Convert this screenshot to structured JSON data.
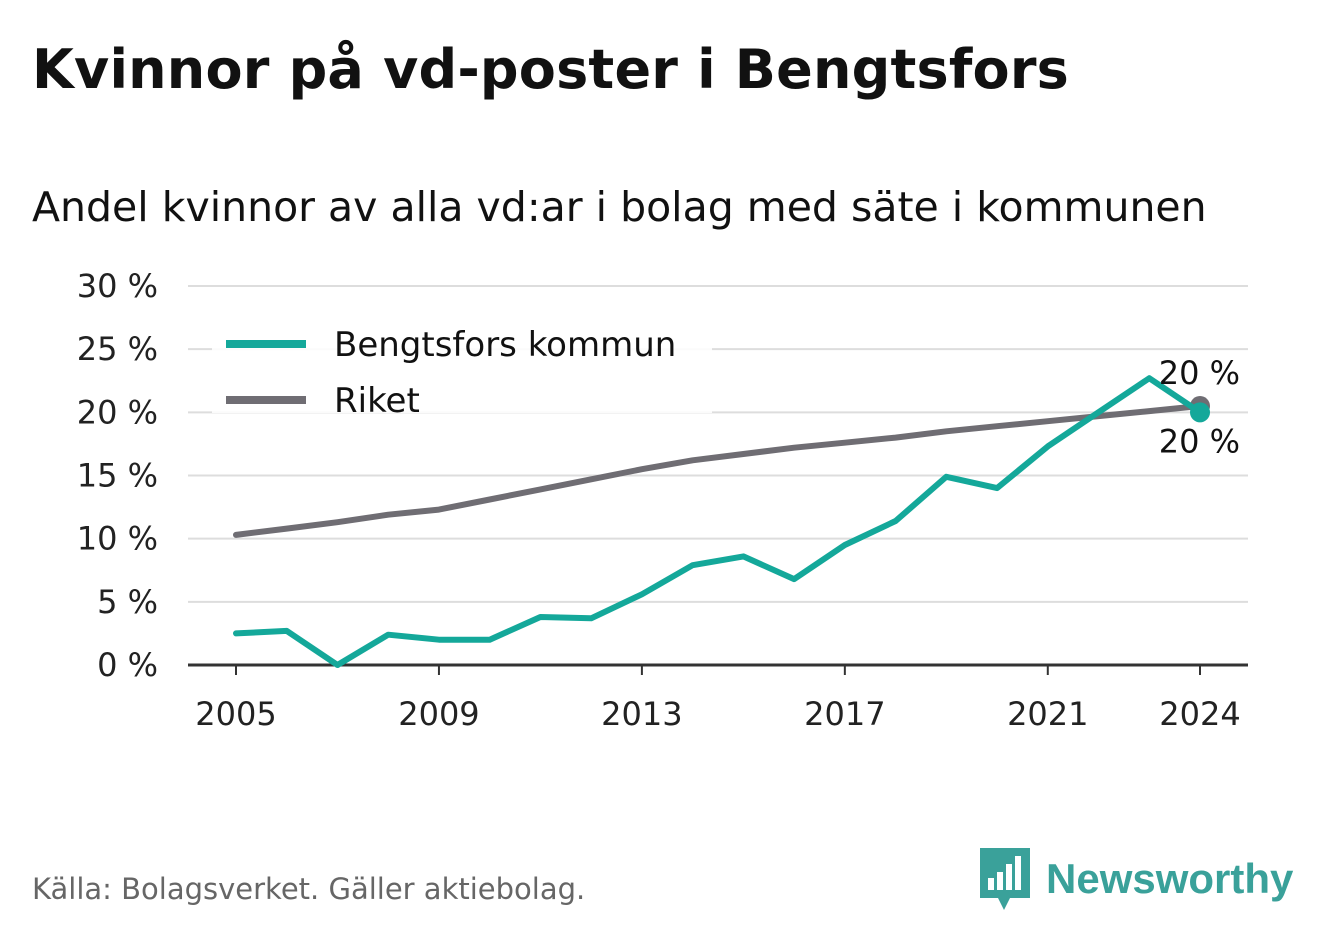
{
  "header": {
    "title": "Kvinnor på vd-poster i Bengtsfors",
    "subtitle": "Andel kvinnor av alla vd:ar i bolag med säte i kommunen"
  },
  "footer": {
    "source": "Källa: Bolagsverket. Gäller aktiebolag.",
    "brand": "Newsworthy",
    "brand_icon": "bar-chart-speech-bubble-icon"
  },
  "colors": {
    "municipality": "#14a89a",
    "national": "#6f6d73",
    "grid": "#dddddd",
    "axis": "#333333",
    "brand": "#3aa19a"
  },
  "chart_data": {
    "type": "line",
    "x": [
      2005,
      2006,
      2007,
      2008,
      2009,
      2010,
      2011,
      2012,
      2013,
      2014,
      2015,
      2016,
      2017,
      2018,
      2019,
      2020,
      2021,
      2022,
      2023,
      2024
    ],
    "series": [
      {
        "name": "Bengtsfors kommun",
        "color": "#14a89a",
        "values": [
          2.5,
          2.7,
          0.0,
          2.4,
          2.0,
          2.0,
          3.8,
          3.7,
          5.6,
          7.9,
          8.6,
          6.8,
          9.5,
          11.4,
          14.9,
          14.0,
          17.3,
          20.0,
          22.7,
          20.0
        ],
        "end_label": "20 %"
      },
      {
        "name": "Riket",
        "color": "#6f6d73",
        "values": [
          10.3,
          10.8,
          11.3,
          11.9,
          12.3,
          13.1,
          13.9,
          14.7,
          15.5,
          16.2,
          16.7,
          17.2,
          17.6,
          18.0,
          18.5,
          18.9,
          19.3,
          19.7,
          20.1,
          20.5
        ],
        "end_label": "20 %"
      }
    ],
    "x_ticks": [
      2005,
      2009,
      2013,
      2017,
      2021,
      2024
    ],
    "y_ticks": [
      0,
      5,
      10,
      15,
      20,
      25,
      30
    ],
    "y_tick_suffix": " %",
    "xlim": [
      2005,
      2024
    ],
    "ylim": [
      0,
      30
    ],
    "grid": "horizontal",
    "legend": "top-left"
  }
}
